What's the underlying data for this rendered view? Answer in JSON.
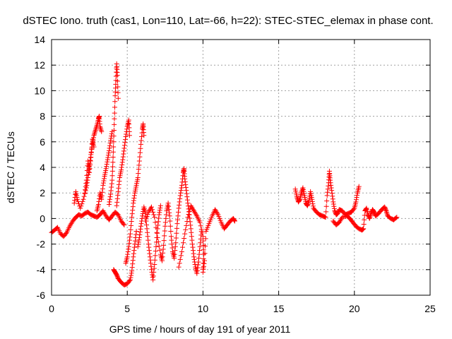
{
  "chart_data": {
    "type": "scatter",
    "title": "dSTEC Iono. truth (cas1, Lon=110, Lat=-66, h=22): STEC-STEC_elemax in phase cont.",
    "xlabel": "GPS time / hours of day 191 of year 2011",
    "ylabel": "dSTEC  / TECUs",
    "xlim": [
      0,
      25
    ],
    "ylim": [
      -6,
      14
    ],
    "xticks": [
      0,
      5,
      10,
      15,
      20,
      25
    ],
    "yticks": [
      -6,
      -4,
      -2,
      0,
      2,
      4,
      6,
      8,
      10,
      12,
      14
    ],
    "grid": true,
    "marker": "plus",
    "color": "#ff0000",
    "series": [
      {
        "values": [
          [
            0.0,
            -1.1
          ],
          [
            0.2,
            -0.9
          ],
          [
            0.4,
            -0.7
          ],
          [
            0.6,
            -1.2
          ],
          [
            0.8,
            -1.4
          ],
          [
            1.0,
            -1.1
          ],
          [
            1.2,
            -0.6
          ],
          [
            1.4,
            -0.2
          ],
          [
            1.6,
            0.1
          ],
          [
            1.8,
            0.3
          ],
          [
            2.0,
            0.2
          ],
          [
            2.2,
            0.4
          ],
          [
            2.4,
            0.5
          ],
          [
            2.6,
            0.3
          ],
          [
            2.8,
            0.2
          ],
          [
            3.0,
            0.1
          ],
          [
            3.2,
            0.3
          ],
          [
            3.4,
            0.6
          ],
          [
            3.6,
            0.2
          ],
          [
            3.8,
            -0.1
          ],
          [
            4.0,
            0.2
          ],
          [
            4.2,
            0.5
          ],
          [
            4.4,
            0.3
          ],
          [
            4.6,
            -0.2
          ],
          [
            4.8,
            -0.5
          ],
          [
            1.5,
            1.2
          ],
          [
            1.6,
            2.1
          ],
          [
            1.7,
            1.5
          ],
          [
            1.9,
            0.8
          ],
          [
            2.1,
            1.5
          ],
          [
            2.3,
            2.4
          ],
          [
            2.4,
            3.2
          ],
          [
            2.5,
            4.1
          ],
          [
            2.6,
            5.0
          ],
          [
            2.7,
            5.8
          ],
          [
            2.8,
            6.5
          ],
          [
            2.9,
            6.9
          ],
          [
            3.0,
            7.3
          ],
          [
            3.1,
            7.8
          ],
          [
            3.15,
            8.0
          ],
          [
            3.2,
            7.2
          ],
          [
            3.3,
            6.8
          ],
          [
            2.2,
            2.0
          ],
          [
            2.3,
            3.0
          ],
          [
            2.4,
            4.5
          ],
          [
            2.5,
            3.6
          ],
          [
            2.6,
            4.8
          ],
          [
            2.7,
            6.2
          ],
          [
            2.8,
            5.6
          ],
          [
            3.0,
            0.6
          ],
          [
            3.1,
            1.1
          ],
          [
            3.2,
            2.0
          ],
          [
            3.3,
            1.5
          ],
          [
            3.4,
            2.6
          ],
          [
            3.5,
            3.3
          ],
          [
            3.6,
            3.9
          ],
          [
            3.7,
            4.6
          ],
          [
            3.8,
            5.3
          ],
          [
            3.9,
            6.1
          ],
          [
            4.0,
            6.8
          ],
          [
            3.8,
            1.1
          ],
          [
            3.9,
            1.9
          ],
          [
            4.0,
            3.0
          ],
          [
            4.05,
            4.4
          ],
          [
            4.1,
            6.0
          ],
          [
            4.15,
            7.8
          ],
          [
            4.2,
            9.6
          ],
          [
            4.25,
            10.8
          ],
          [
            4.3,
            12.1
          ],
          [
            4.35,
            11.2
          ],
          [
            4.4,
            9.4
          ],
          [
            4.3,
            1.0
          ],
          [
            4.4,
            2.1
          ],
          [
            4.5,
            3.2
          ],
          [
            4.6,
            3.8
          ],
          [
            4.7,
            4.6
          ],
          [
            4.8,
            5.5
          ],
          [
            4.9,
            6.4
          ],
          [
            5.0,
            7.2
          ],
          [
            5.1,
            7.7
          ],
          [
            5.15,
            6.5
          ],
          [
            4.1,
            -4.0
          ],
          [
            4.2,
            -4.2
          ],
          [
            4.3,
            -4.4
          ],
          [
            4.4,
            -4.7
          ],
          [
            4.6,
            -5.0
          ],
          [
            4.8,
            -5.2
          ],
          [
            5.0,
            -5.1
          ],
          [
            5.2,
            -4.8
          ],
          [
            5.3,
            -4.1
          ],
          [
            5.4,
            -3.0
          ],
          [
            5.5,
            -2.0
          ],
          [
            5.6,
            -1.0
          ],
          [
            4.9,
            -3.5
          ],
          [
            5.0,
            -3.0
          ],
          [
            5.1,
            -2.2
          ],
          [
            5.2,
            -1.2
          ],
          [
            5.3,
            0.1
          ],
          [
            5.4,
            1.2
          ],
          [
            5.5,
            2.0
          ],
          [
            5.6,
            2.6
          ],
          [
            5.7,
            3.2
          ],
          [
            5.8,
            4.5
          ],
          [
            5.9,
            5.8
          ],
          [
            6.0,
            7.0
          ],
          [
            6.05,
            7.4
          ],
          [
            6.1,
            6.5
          ],
          [
            5.7,
            -2.2
          ],
          [
            5.8,
            -1.5
          ],
          [
            5.9,
            -0.6
          ],
          [
            6.0,
            0.2
          ],
          [
            6.1,
            0.9
          ],
          [
            6.2,
            0.4
          ],
          [
            6.3,
            -0.8
          ],
          [
            6.4,
            -2.0
          ],
          [
            6.5,
            -3.0
          ],
          [
            6.6,
            -4.0
          ],
          [
            6.7,
            -4.8
          ],
          [
            6.8,
            -3.6
          ],
          [
            6.9,
            -2.2
          ],
          [
            7.0,
            -0.8
          ],
          [
            7.1,
            0.3
          ],
          [
            7.2,
            1.0
          ],
          [
            6.2,
            -0.2
          ],
          [
            6.4,
            0.5
          ],
          [
            6.6,
            0.9
          ],
          [
            6.8,
            0.1
          ],
          [
            7.0,
            -1.5
          ],
          [
            7.2,
            -2.8
          ],
          [
            7.3,
            -3.3
          ],
          [
            7.4,
            -2.1
          ],
          [
            7.5,
            -0.6
          ],
          [
            7.6,
            0.6
          ],
          [
            7.7,
            1.2
          ],
          [
            7.8,
            0.2
          ],
          [
            7.9,
            -1.4
          ],
          [
            8.0,
            -2.6
          ],
          [
            8.1,
            -3.1
          ],
          [
            8.2,
            -1.9
          ],
          [
            8.3,
            -0.4
          ],
          [
            8.4,
            0.8
          ],
          [
            8.5,
            1.8
          ],
          [
            8.6,
            2.6
          ],
          [
            8.7,
            3.6
          ],
          [
            8.75,
            3.9
          ],
          [
            8.8,
            3.1
          ],
          [
            8.9,
            2.2
          ],
          [
            9.0,
            1.2
          ],
          [
            9.1,
            0.3
          ],
          [
            9.2,
            -0.8
          ],
          [
            9.3,
            -2.0
          ],
          [
            9.4,
            -3.0
          ],
          [
            9.5,
            -3.8
          ],
          [
            9.6,
            -4.3
          ],
          [
            9.7,
            -3.4
          ],
          [
            9.8,
            -2.2
          ],
          [
            9.9,
            -1.0
          ],
          [
            8.4,
            -3.8
          ],
          [
            8.6,
            -2.6
          ],
          [
            8.8,
            -1.2
          ],
          [
            9.0,
            0.1
          ],
          [
            9.2,
            1.0
          ],
          [
            9.4,
            0.6
          ],
          [
            9.6,
            0.2
          ],
          [
            9.8,
            -0.3
          ],
          [
            10.0,
            -1.4
          ],
          [
            10.05,
            -2.8
          ],
          [
            10.0,
            -4.2
          ],
          [
            10.1,
            -3.3
          ],
          [
            10.2,
            -1.0
          ],
          [
            10.4,
            -0.4
          ],
          [
            10.6,
            0.2
          ],
          [
            10.8,
            0.7
          ],
          [
            11.0,
            0.3
          ],
          [
            11.2,
            -0.3
          ],
          [
            11.4,
            -0.8
          ],
          [
            11.6,
            -0.5
          ],
          [
            11.8,
            -0.2
          ],
          [
            12.0,
            0.0
          ],
          [
            12.1,
            -0.2
          ],
          [
            16.1,
            2.3
          ],
          [
            16.2,
            1.7
          ],
          [
            16.3,
            1.3
          ],
          [
            16.4,
            1.5
          ],
          [
            16.5,
            2.0
          ],
          [
            16.6,
            2.4
          ],
          [
            16.7,
            1.8
          ],
          [
            16.8,
            1.2
          ],
          [
            16.9,
            1.0
          ],
          [
            17.0,
            1.4
          ],
          [
            17.1,
            2.1
          ],
          [
            17.2,
            1.5
          ],
          [
            17.3,
            0.8
          ],
          [
            17.5,
            0.5
          ],
          [
            17.7,
            0.3
          ],
          [
            17.9,
            0.2
          ],
          [
            18.1,
            0.1
          ],
          [
            18.2,
            1.8
          ],
          [
            18.3,
            2.8
          ],
          [
            18.35,
            3.7
          ],
          [
            18.4,
            3.0
          ],
          [
            18.5,
            2.2
          ],
          [
            18.6,
            1.3
          ],
          [
            18.7,
            0.6
          ],
          [
            18.8,
            0.3
          ],
          [
            18.9,
            0.4
          ],
          [
            19.0,
            0.7
          ],
          [
            19.2,
            0.6
          ],
          [
            19.4,
            0.3
          ],
          [
            19.6,
            0.4
          ],
          [
            19.8,
            0.5
          ],
          [
            20.0,
            0.8
          ],
          [
            20.1,
            1.3
          ],
          [
            20.2,
            2.0
          ],
          [
            20.3,
            2.5
          ],
          [
            18.6,
            -0.2
          ],
          [
            18.8,
            -0.5
          ],
          [
            19.0,
            -0.3
          ],
          [
            19.2,
            0.1
          ],
          [
            19.5,
            0.2
          ],
          [
            19.7,
            0.0
          ],
          [
            19.9,
            -0.3
          ],
          [
            20.1,
            -0.6
          ],
          [
            20.3,
            -0.8
          ],
          [
            20.5,
            -0.9
          ],
          [
            20.6,
            -0.8
          ],
          [
            20.7,
            0.6
          ],
          [
            20.8,
            0.8
          ],
          [
            20.9,
            0.3
          ],
          [
            21.0,
            0.0
          ],
          [
            21.1,
            0.4
          ],
          [
            21.2,
            0.7
          ],
          [
            21.3,
            0.5
          ],
          [
            21.4,
            0.2
          ],
          [
            21.6,
            0.4
          ],
          [
            21.8,
            0.7
          ],
          [
            22.0,
            0.9
          ],
          [
            22.1,
            0.6
          ],
          [
            22.2,
            0.2
          ],
          [
            22.4,
            0.0
          ],
          [
            22.6,
            -0.1
          ],
          [
            22.8,
            0.1
          ]
        ]
      }
    ]
  }
}
